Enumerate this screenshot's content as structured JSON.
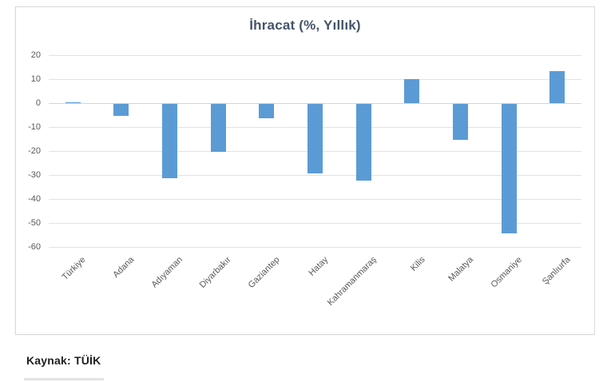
{
  "source_note": "Kaynak: TÜİK",
  "chart_data": {
    "type": "bar",
    "title": "İhracat (%, Yıllık)",
    "categories": [
      "Türkiye",
      "Adana",
      "Adıyaman",
      "Diyarbakır",
      "Gaziantep",
      "Hatay",
      "Kahramanmaraş",
      "Kilis",
      "Malatya",
      "Osmaniye",
      "Şanlıurfa"
    ],
    "values": [
      0.5,
      -5,
      -31,
      -20,
      -6,
      -29,
      -32,
      10,
      -15,
      -54,
      13.5
    ],
    "xlabel": "",
    "ylabel": "",
    "ylim": [
      -60,
      20
    ],
    "yticks": [
      20,
      10,
      0,
      -10,
      -20,
      -30,
      -40,
      -50,
      -60
    ],
    "grid": true,
    "legend": false,
    "bar_color": "#5B9BD5",
    "title_color": "#44546A",
    "axis_text_color": "#595959",
    "gridline_color": "#E2E2E2"
  }
}
